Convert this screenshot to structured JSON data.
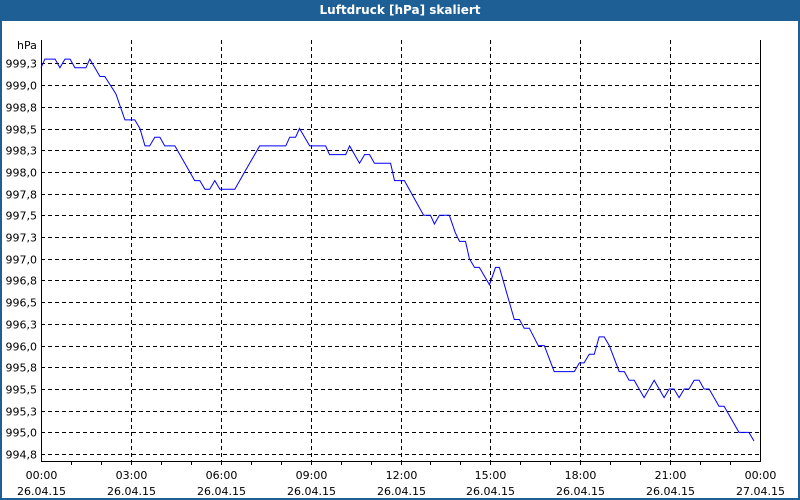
{
  "window": {
    "title": "Luftdruck [hPa] skaliert"
  },
  "colors": {
    "titlebar": "#1e5f96",
    "line": "#0000ff",
    "grid": "#000000"
  },
  "chart_data": {
    "type": "line",
    "title": "Luftdruck [hPa] skaliert",
    "ylabel": "hPa",
    "xlabel": "",
    "xlim": [
      0,
      24
    ],
    "ylim": [
      994.67,
      999.52
    ],
    "grid": true,
    "y_ticks": [
      {
        "value": 999.25,
        "label": "999,3"
      },
      {
        "value": 999.0,
        "label": "999,0"
      },
      {
        "value": 998.75,
        "label": "998,8"
      },
      {
        "value": 998.5,
        "label": "998,5"
      },
      {
        "value": 998.25,
        "label": "998,3"
      },
      {
        "value": 998.0,
        "label": "998,0"
      },
      {
        "value": 997.75,
        "label": "997,8"
      },
      {
        "value": 997.5,
        "label": "997,5"
      },
      {
        "value": 997.25,
        "label": "997,3"
      },
      {
        "value": 997.0,
        "label": "997,0"
      },
      {
        "value": 996.75,
        "label": "996,8"
      },
      {
        "value": 996.5,
        "label": "996,5"
      },
      {
        "value": 996.25,
        "label": "996,3"
      },
      {
        "value": 996.0,
        "label": "996,0"
      },
      {
        "value": 995.75,
        "label": "995,8"
      },
      {
        "value": 995.5,
        "label": "995,5"
      },
      {
        "value": 995.25,
        "label": "995,3"
      },
      {
        "value": 995.0,
        "label": "995,0"
      },
      {
        "value": 994.75,
        "label": "994,8"
      }
    ],
    "x_ticks": [
      {
        "value": 0,
        "time": "00:00",
        "date": "26.04.15"
      },
      {
        "value": 3,
        "time": "03:00",
        "date": "26.04.15"
      },
      {
        "value": 6,
        "time": "06:00",
        "date": "26.04.15"
      },
      {
        "value": 9,
        "time": "09:00",
        "date": "26.04.15"
      },
      {
        "value": 12,
        "time": "12:00",
        "date": "26.04.15"
      },
      {
        "value": 15,
        "time": "15:00",
        "date": "26.04.15"
      },
      {
        "value": 18,
        "time": "18:00",
        "date": "26.04.15"
      },
      {
        "value": 21,
        "time": "21:00",
        "date": "26.04.15"
      },
      {
        "value": 24,
        "time": "00:00",
        "date": "27.04.15"
      }
    ],
    "series": [
      {
        "name": "Luftdruck",
        "unit": "hPa",
        "x_unit": "hours since 26.04.15 00:00",
        "points": [
          [
            0.0,
            999.2
          ],
          [
            0.13,
            999.3
          ],
          [
            0.47,
            999.3
          ],
          [
            0.63,
            999.2
          ],
          [
            0.8,
            999.3
          ],
          [
            0.97,
            999.3
          ],
          [
            1.13,
            999.2
          ],
          [
            1.5,
            999.2
          ],
          [
            1.63,
            999.3
          ],
          [
            1.97,
            999.1
          ],
          [
            2.13,
            999.1
          ],
          [
            2.5,
            998.9
          ],
          [
            2.8,
            998.6
          ],
          [
            3.13,
            998.6
          ],
          [
            3.3,
            998.5
          ],
          [
            3.47,
            998.3
          ],
          [
            3.63,
            998.3
          ],
          [
            3.8,
            998.4
          ],
          [
            3.97,
            998.4
          ],
          [
            4.13,
            998.3
          ],
          [
            4.47,
            998.3
          ],
          [
            4.8,
            998.1
          ],
          [
            5.13,
            997.9
          ],
          [
            5.3,
            997.9
          ],
          [
            5.47,
            997.8
          ],
          [
            5.63,
            997.8
          ],
          [
            5.8,
            997.9
          ],
          [
            5.97,
            997.8
          ],
          [
            6.47,
            997.8
          ],
          [
            6.8,
            998.0
          ],
          [
            7.3,
            998.3
          ],
          [
            8.17,
            998.3
          ],
          [
            8.3,
            998.4
          ],
          [
            8.5,
            998.4
          ],
          [
            8.63,
            998.5
          ],
          [
            8.97,
            998.3
          ],
          [
            9.5,
            998.3
          ],
          [
            9.63,
            998.2
          ],
          [
            10.17,
            998.2
          ],
          [
            10.3,
            998.3
          ],
          [
            10.63,
            998.1
          ],
          [
            10.8,
            998.2
          ],
          [
            10.97,
            998.2
          ],
          [
            11.13,
            998.1
          ],
          [
            11.67,
            998.1
          ],
          [
            11.8,
            997.9
          ],
          [
            12.13,
            997.9
          ],
          [
            12.77,
            997.5
          ],
          [
            13.0,
            997.5
          ],
          [
            13.13,
            997.4
          ],
          [
            13.3,
            997.5
          ],
          [
            13.63,
            997.5
          ],
          [
            13.83,
            997.3
          ],
          [
            13.97,
            997.2
          ],
          [
            14.17,
            997.2
          ],
          [
            14.3,
            997.0
          ],
          [
            14.47,
            996.9
          ],
          [
            14.63,
            996.9
          ],
          [
            14.97,
            996.7
          ],
          [
            15.17,
            996.9
          ],
          [
            15.3,
            996.9
          ],
          [
            15.8,
            996.3
          ],
          [
            15.97,
            996.3
          ],
          [
            16.13,
            996.2
          ],
          [
            16.3,
            996.2
          ],
          [
            16.6,
            996.0
          ],
          [
            16.8,
            996.0
          ],
          [
            17.13,
            995.7
          ],
          [
            17.8,
            995.7
          ],
          [
            17.97,
            995.8
          ],
          [
            18.13,
            995.8
          ],
          [
            18.3,
            995.9
          ],
          [
            18.47,
            995.9
          ],
          [
            18.63,
            996.1
          ],
          [
            18.8,
            996.1
          ],
          [
            18.97,
            996.0
          ],
          [
            19.3,
            995.7
          ],
          [
            19.47,
            995.7
          ],
          [
            19.63,
            995.6
          ],
          [
            19.8,
            995.6
          ],
          [
            20.13,
            995.4
          ],
          [
            20.47,
            995.6
          ],
          [
            20.8,
            995.4
          ],
          [
            20.97,
            995.5
          ],
          [
            21.13,
            995.5
          ],
          [
            21.3,
            995.4
          ],
          [
            21.47,
            995.5
          ],
          [
            21.63,
            995.5
          ],
          [
            21.8,
            995.6
          ],
          [
            21.97,
            995.6
          ],
          [
            22.13,
            995.5
          ],
          [
            22.3,
            995.5
          ],
          [
            22.63,
            995.3
          ],
          [
            22.8,
            995.3
          ],
          [
            23.3,
            995.0
          ],
          [
            23.63,
            995.0
          ],
          [
            23.8,
            994.9
          ]
        ]
      }
    ]
  }
}
